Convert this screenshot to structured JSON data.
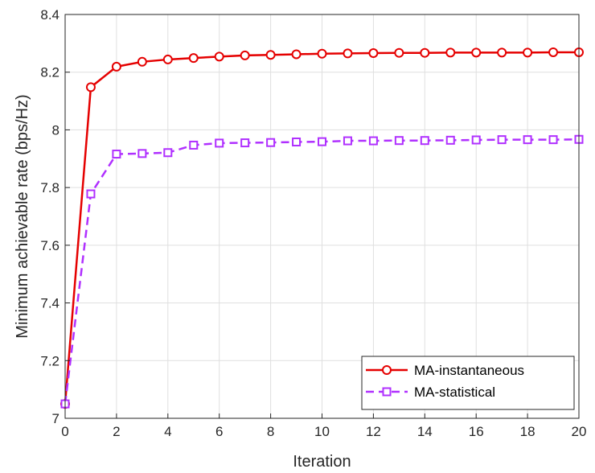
{
  "chart_data": {
    "type": "line",
    "title": "",
    "xlabel": "Iteration",
    "ylabel": "Minimum achievable rate (bps/Hz)",
    "xlim": [
      0,
      20
    ],
    "ylim": [
      7,
      8.4
    ],
    "grid": true,
    "legend_position": "bottom-right",
    "x_ticks": [
      0,
      2,
      4,
      6,
      8,
      10,
      12,
      14,
      16,
      18,
      20
    ],
    "x_tick_labels": [
      "0",
      "2",
      "4",
      "6",
      "8",
      "10",
      "12",
      "14",
      "16",
      "18",
      "20"
    ],
    "y_ticks": [
      7,
      7.2,
      7.4,
      7.6,
      7.8,
      8,
      8.2,
      8.4
    ],
    "y_tick_labels": [
      "7",
      "7.2",
      "7.4",
      "7.6",
      "7.8",
      "8",
      "8.2",
      "8.4"
    ],
    "x": [
      0,
      1,
      2,
      3,
      4,
      5,
      6,
      7,
      8,
      9,
      10,
      11,
      12,
      13,
      14,
      15,
      16,
      17,
      18,
      19,
      20
    ],
    "series": [
      {
        "name": "MA-instantaneous",
        "color": "#e50000",
        "line_style": "solid",
        "marker": "circle",
        "values": [
          7.05,
          8.148,
          8.219,
          8.236,
          8.244,
          8.249,
          8.254,
          8.258,
          8.26,
          8.262,
          8.264,
          8.265,
          8.266,
          8.267,
          8.267,
          8.268,
          8.268,
          8.268,
          8.268,
          8.269,
          8.269
        ]
      },
      {
        "name": "MA-statistical",
        "color": "#b030ff",
        "line_style": "dashed",
        "marker": "square",
        "values": [
          7.05,
          7.778,
          7.916,
          7.918,
          7.921,
          7.947,
          7.954,
          7.955,
          7.956,
          7.958,
          7.959,
          7.962,
          7.962,
          7.963,
          7.963,
          7.964,
          7.965,
          7.966,
          7.966,
          7.966,
          7.967
        ]
      }
    ]
  }
}
